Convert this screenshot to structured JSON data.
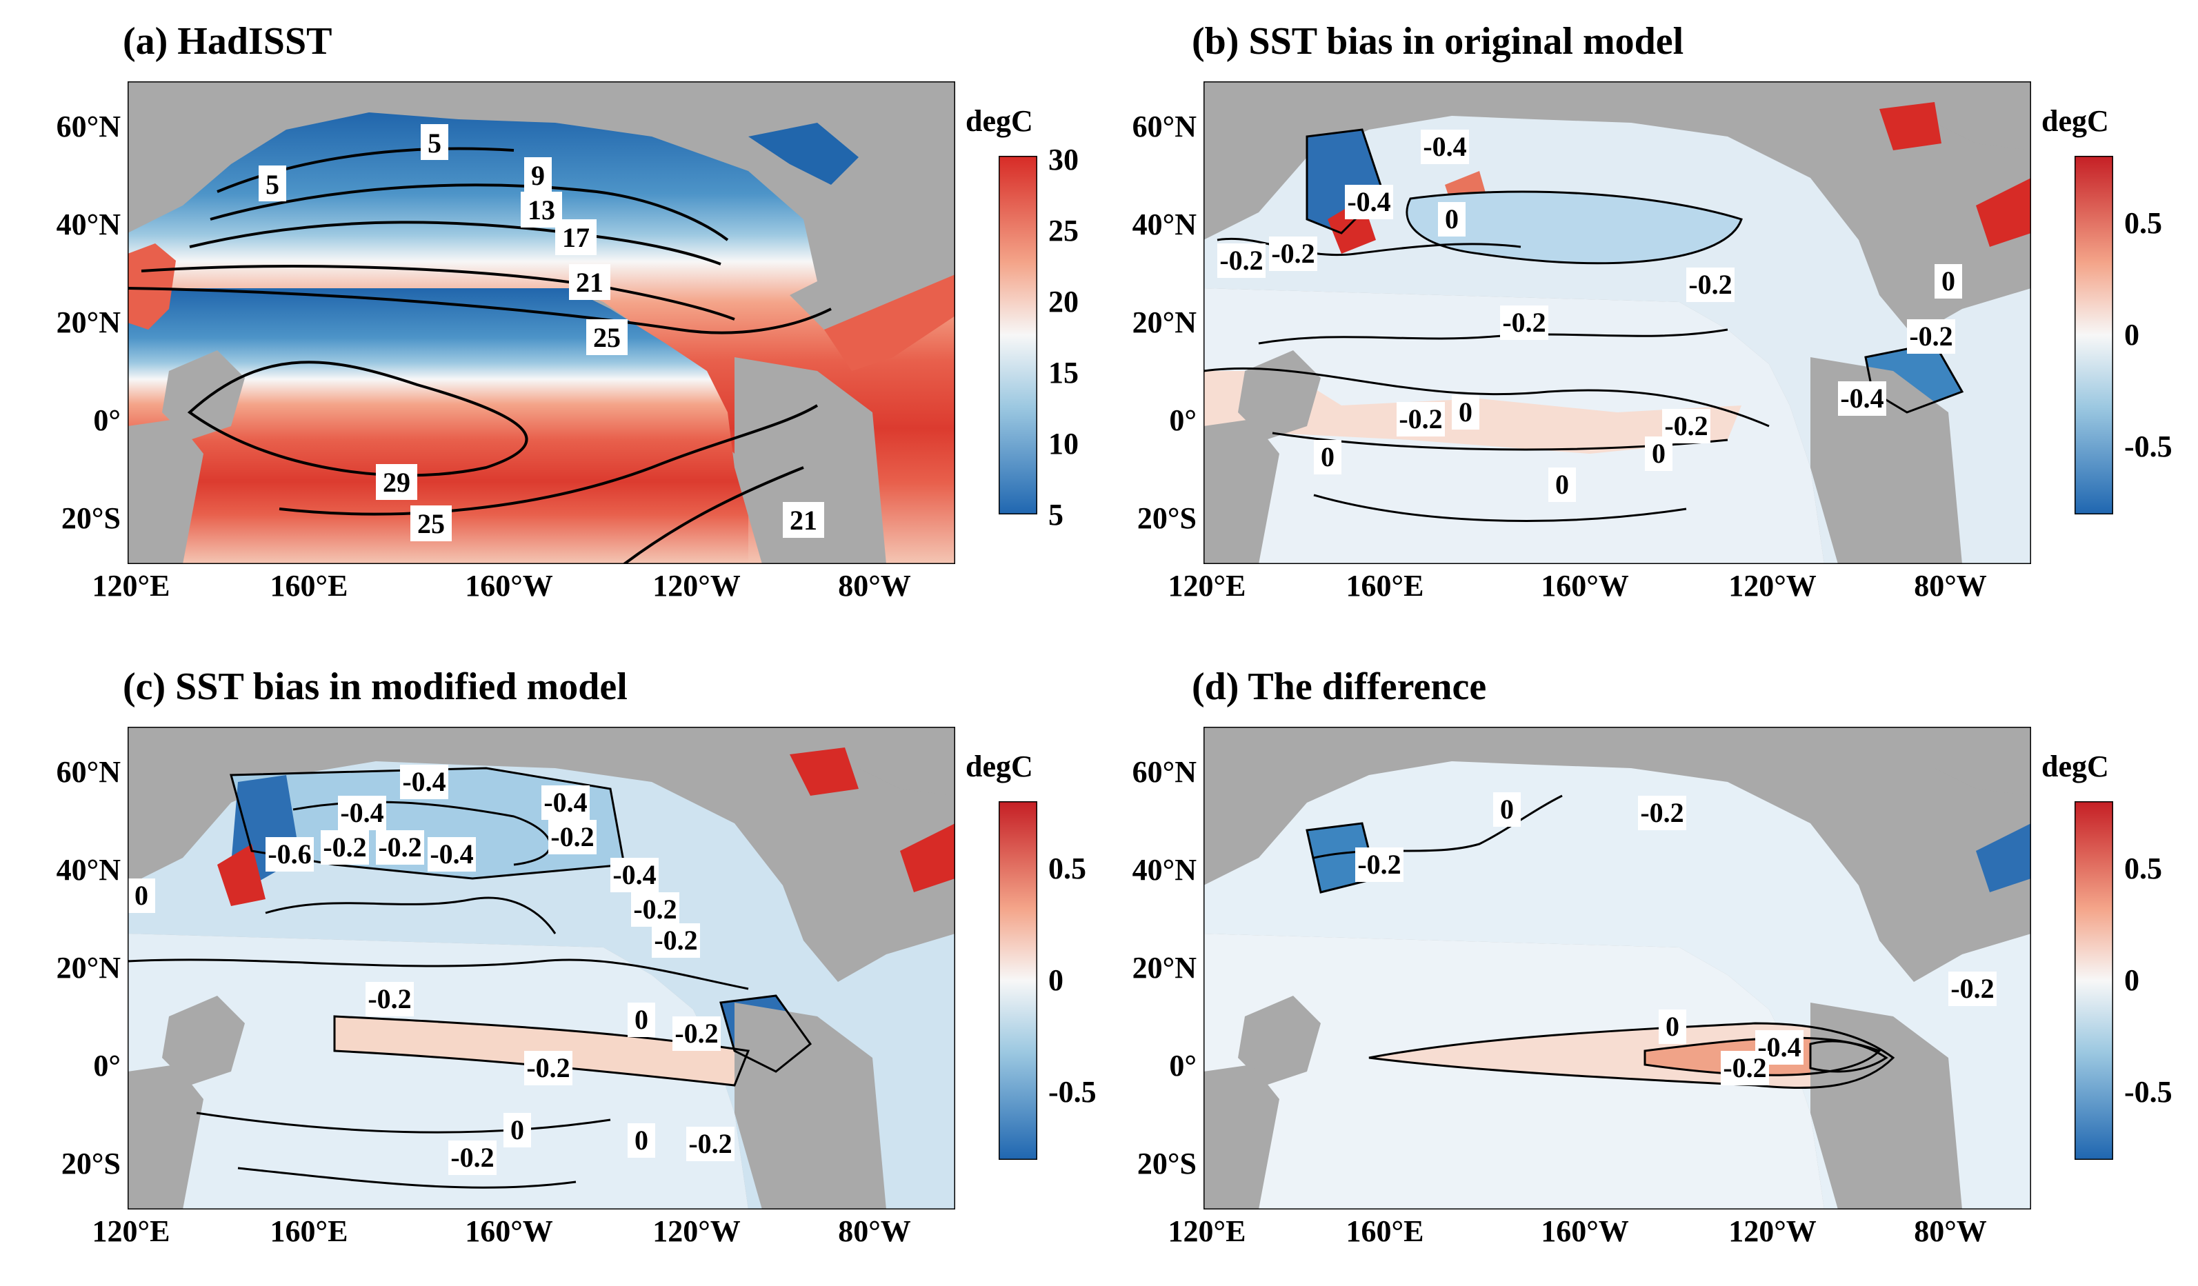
{
  "figure": {
    "unit_label": "degC",
    "panels": [
      {
        "id": "a",
        "title": "(a) HadISST",
        "lat_ticks": [
          "60°N",
          "40°N",
          "20°N",
          "0°",
          "20°S"
        ],
        "lon_ticks": [
          "120°E",
          "160°E",
          "160°W",
          "120°W",
          "80°W"
        ],
        "colorbar": {
          "ticks": [
            "30",
            "25",
            "20",
            "15",
            "10",
            "5"
          ],
          "min": 5,
          "max": 30
        },
        "contour_labels": [
          "5",
          "5",
          "9",
          "13",
          "17",
          "21",
          "25",
          "29",
          "25",
          "21"
        ]
      },
      {
        "id": "b",
        "title": "(b) SST bias in original model",
        "lat_ticks": [
          "60°N",
          "40°N",
          "20°N",
          "0°",
          "20°S"
        ],
        "lon_ticks": [
          "120°E",
          "160°E",
          "160°W",
          "120°W",
          "80°W"
        ],
        "colorbar": {
          "ticks": [
            "0.5",
            "0",
            "-0.5"
          ],
          "min": -0.8,
          "max": 0.8
        },
        "contour_labels": [
          "-0.4",
          "-0.4",
          "0",
          "-0.2",
          "-0.2",
          "-0.2",
          "-0.2",
          "-0.2",
          "0",
          "-0.2",
          "-0.4",
          "0",
          "0",
          "0",
          "-0.2",
          "0"
        ]
      },
      {
        "id": "c",
        "title": "(c) SST bias in modified model",
        "lat_ticks": [
          "60°N",
          "40°N",
          "20°N",
          "0°",
          "20°S"
        ],
        "lon_ticks": [
          "120°E",
          "160°E",
          "160°W",
          "120°W",
          "80°W"
        ],
        "colorbar": {
          "ticks": [
            "0.5",
            "0",
            "-0.5"
          ],
          "min": -0.8,
          "max": 0.8
        },
        "contour_labels": [
          "-0.4",
          "-0.4",
          "-0.4",
          "-0.6",
          "-0.2",
          "-0.2",
          "-0.4",
          "-0.2",
          "-0.4",
          "-0.2",
          "-0.2",
          "0",
          "-0.2",
          "-0.2",
          "0",
          "-0.2",
          "-0.2",
          "0",
          "0",
          "-0.2"
        ]
      },
      {
        "id": "d",
        "title": "(d) The difference",
        "lat_ticks": [
          "60°N",
          "40°N",
          "20°N",
          "0°",
          "20°S"
        ],
        "lon_ticks": [
          "120°E",
          "160°E",
          "160°W",
          "120°W",
          "80°W"
        ],
        "colorbar": {
          "ticks": [
            "0.5",
            "0",
            "-0.5"
          ],
          "min": -0.8,
          "max": 0.8
        },
        "contour_labels": [
          "0",
          "-0.2",
          "-0.2",
          "0",
          "-0.4",
          "-0.2",
          "-0.2"
        ]
      }
    ]
  },
  "colors": {
    "land": "#a9a9a9",
    "ocean_neutral": "#f4f7fa",
    "warm": "#e8604c",
    "warm_deep": "#d72b26",
    "cool": "#8fc3e3",
    "cool_deep": "#1f66b0",
    "contour": "#000000"
  }
}
